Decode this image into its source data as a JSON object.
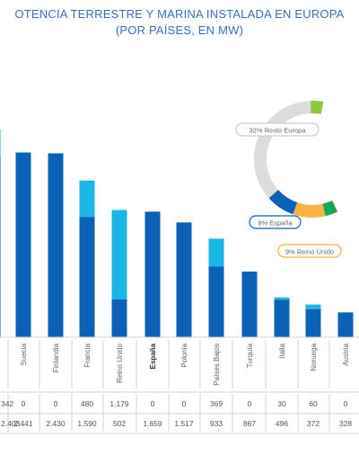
{
  "chart_data": [
    {
      "type": "bar",
      "title": "OTENCIA TERRESTRE Y MARINA INSTALADA EN EUROPA",
      "subtitle": "(POR PAÍSES, EN MW)",
      "categories": [
        "",
        "Suecia",
        "Finlandia",
        "Francia",
        "Reino Unido",
        "España",
        "Polonia",
        "Países Bajos",
        "Turquía",
        "Italia",
        "Noruega",
        "Austria"
      ],
      "highlight_category": "España",
      "series": [
        {
          "values": [
            342,
            0,
            0,
            480,
            1179,
            0,
            0,
            369,
            0,
            30,
            60,
            0
          ],
          "color": "#1ab6e6"
        },
        {
          "values": [
            2403,
            2441,
            2430,
            1590,
            502,
            1659,
            1517,
            933,
            867,
            496,
            372,
            328
          ],
          "color": "#0a62b8"
        }
      ],
      "table_rows": [
        [
          "342",
          "0",
          "0",
          "480",
          "1.179",
          "0",
          "0",
          "369",
          "0",
          "30",
          "60",
          "0"
        ],
        [
          "2.403",
          "2.441",
          "2.430",
          "1.590",
          "502",
          "1.659",
          "1.517",
          "933",
          "867",
          "496",
          "372",
          "328"
        ]
      ]
    },
    {
      "type": "pie",
      "labels": [
        "32% Resto Europa",
        "8% España",
        "9% Reino Unido"
      ],
      "values": [
        32,
        8,
        9
      ],
      "colors": [
        "#dcdcdc",
        "#0a62b8",
        "#f7b444"
      ],
      "other_colors": [
        "#8cc63f",
        "#1aa55a"
      ]
    }
  ]
}
